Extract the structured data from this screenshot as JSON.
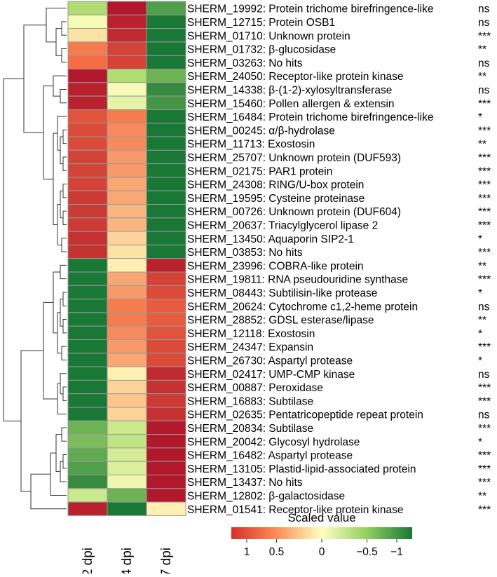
{
  "chart_data": {
    "type": "heatmap",
    "columns": [
      "2 dpi",
      "4 dpi",
      "7 dpi"
    ],
    "rows": [
      {
        "id": "SHERM_19992",
        "annotation": "Protein trichome birefringence-like",
        "sig": "ns",
        "values": [
          -0.45,
          1.0,
          -0.8
        ]
      },
      {
        "id": "SHERM_12715",
        "annotation": "Protein OSB1",
        "sig": "ns",
        "values": [
          -0.05,
          0.95,
          -1.0
        ]
      },
      {
        "id": "SHERM_01710",
        "annotation": "Unknown protein",
        "sig": "***",
        "values": [
          0.1,
          0.9,
          -1.0
        ]
      },
      {
        "id": "SHERM_01732",
        "annotation": "β-glucosidase",
        "sig": "**",
        "values": [
          0.45,
          0.75,
          -1.0
        ]
      },
      {
        "id": "SHERM_03263",
        "annotation": "No hits",
        "sig": "ns",
        "values": [
          0.5,
          0.75,
          -1.0
        ]
      },
      {
        "id": "SHERM_24050",
        "annotation": "Receptor-like protein kinase",
        "sig": "**",
        "values": [
          1.0,
          -0.45,
          -0.7
        ]
      },
      {
        "id": "SHERM_14338",
        "annotation": "β-(1-2)-xylosyltransferase",
        "sig": "ns",
        "values": [
          0.95,
          -0.05,
          -0.9
        ]
      },
      {
        "id": "SHERM_15460",
        "annotation": "Pollen allergen & extensin",
        "sig": "***",
        "values": [
          0.95,
          -0.15,
          -0.85
        ]
      },
      {
        "id": "SHERM_16484",
        "annotation": "Protein trichome birefringence-like",
        "sig": "*",
        "values": [
          0.65,
          0.45,
          -1.0
        ]
      },
      {
        "id": "SHERM_00245",
        "annotation": "α/β-hydrolase",
        "sig": "***",
        "values": [
          0.7,
          0.4,
          -1.0
        ]
      },
      {
        "id": "SHERM_11713",
        "annotation": "Exostosin",
        "sig": "**",
        "values": [
          0.7,
          0.4,
          -1.0
        ]
      },
      {
        "id": "SHERM_25707",
        "annotation": "Unknown protein (DUF593)",
        "sig": "***",
        "values": [
          0.75,
          0.35,
          -1.0
        ]
      },
      {
        "id": "SHERM_02175",
        "annotation": "PAR1 protein",
        "sig": "***",
        "values": [
          0.75,
          0.35,
          -1.0
        ]
      },
      {
        "id": "SHERM_24308",
        "annotation": "RING/U-box protein",
        "sig": "***",
        "values": [
          0.75,
          0.3,
          -1.0
        ]
      },
      {
        "id": "SHERM_19595",
        "annotation": "Cysteine proteinase",
        "sig": "***",
        "values": [
          0.8,
          0.3,
          -1.0
        ]
      },
      {
        "id": "SHERM_00726",
        "annotation": "Unknown protein (DUF604)",
        "sig": "***",
        "values": [
          0.8,
          0.25,
          -1.0
        ]
      },
      {
        "id": "SHERM_20637",
        "annotation": "Triacylglycerol lipase 2",
        "sig": "***",
        "values": [
          0.8,
          0.25,
          -1.0
        ]
      },
      {
        "id": "SHERM_13450",
        "annotation": "Aquaporin SIP2-1",
        "sig": "*",
        "values": [
          0.85,
          0.15,
          -1.0
        ]
      },
      {
        "id": "SHERM_03853",
        "annotation": "No hits",
        "sig": "***",
        "values": [
          0.85,
          0.1,
          -1.0
        ]
      },
      {
        "id": "SHERM_23996",
        "annotation": "COBRA-like protein",
        "sig": "**",
        "values": [
          -1.0,
          0.05,
          0.95
        ]
      },
      {
        "id": "SHERM_19811",
        "annotation": "RNA pseudouridine synthase",
        "sig": "***",
        "values": [
          -1.0,
          0.3,
          0.75
        ]
      },
      {
        "id": "SHERM_08443",
        "annotation": "Subtilisin-like protease",
        "sig": "*",
        "values": [
          -1.0,
          0.35,
          0.7
        ]
      },
      {
        "id": "SHERM_20624",
        "annotation": "Cytochrome c1,2-heme protein",
        "sig": "ns",
        "values": [
          -1.0,
          0.45,
          0.6
        ]
      },
      {
        "id": "SHERM_28852",
        "annotation": "GDSL esterase/lipase",
        "sig": "**",
        "values": [
          -1.0,
          0.45,
          0.6
        ]
      },
      {
        "id": "SHERM_12118",
        "annotation": "Exostosin",
        "sig": "*",
        "values": [
          -1.0,
          0.4,
          0.65
        ]
      },
      {
        "id": "SHERM_24347",
        "annotation": "Expansin",
        "sig": "***",
        "values": [
          -1.0,
          0.35,
          0.7
        ]
      },
      {
        "id": "SHERM_26730",
        "annotation": "Aspartyl protease",
        "sig": "*",
        "values": [
          -1.0,
          0.3,
          0.7
        ]
      },
      {
        "id": "SHERM_02417",
        "annotation": "UMP-CMP kinase",
        "sig": "ns",
        "values": [
          -1.0,
          0.05,
          0.9
        ]
      },
      {
        "id": "SHERM_00887",
        "annotation": "Peroxidase",
        "sig": "***",
        "values": [
          -1.0,
          0.15,
          0.85
        ]
      },
      {
        "id": "SHERM_16883",
        "annotation": "Subtilase",
        "sig": "***",
        "values": [
          -1.0,
          0.2,
          0.8
        ]
      },
      {
        "id": "SHERM_02635",
        "annotation": "Pentatricopeptide repeat protein",
        "sig": "ns",
        "values": [
          -1.0,
          0.15,
          0.85
        ]
      },
      {
        "id": "SHERM_20834",
        "annotation": "Subtilase",
        "sig": "***",
        "values": [
          -0.7,
          -0.3,
          1.0
        ]
      },
      {
        "id": "SHERM_20042",
        "annotation": "Glycosyl hydrolase",
        "sig": "*",
        "values": [
          -0.65,
          -0.35,
          1.0
        ]
      },
      {
        "id": "SHERM_16482",
        "annotation": "Aspartyl protease",
        "sig": "***",
        "values": [
          -0.75,
          -0.25,
          1.0
        ]
      },
      {
        "id": "SHERM_13105",
        "annotation": "Plastid-lipid-associated protein",
        "sig": "***",
        "values": [
          -0.8,
          -0.2,
          1.0
        ]
      },
      {
        "id": "SHERM_13437",
        "annotation": "No hits",
        "sig": "***",
        "values": [
          -0.9,
          -0.1,
          1.0
        ]
      },
      {
        "id": "SHERM_12802",
        "annotation": "β-galactosidase",
        "sig": "**",
        "values": [
          -0.3,
          -0.7,
          1.0
        ]
      },
      {
        "id": "SHERM_01541",
        "annotation": "Receptor-like protein kinase",
        "sig": "***",
        "values": [
          0.95,
          -1.0,
          0.05
        ]
      }
    ],
    "legend": {
      "title": "Scaled value",
      "ticks": [
        "1",
        "0.5",
        "0",
        "−0.5",
        "−1"
      ],
      "tick_values": [
        1,
        0.5,
        0,
        -0.5,
        -1
      ],
      "range": [
        1,
        -1
      ]
    },
    "colors": {
      "high": "#b2182b",
      "mid_high": "#f46d43",
      "mid": "#ffffbf",
      "mid_low": "#a6d96a",
      "low": "#1a7837"
    },
    "dendrogram": "hierarchical clustering of rows"
  }
}
